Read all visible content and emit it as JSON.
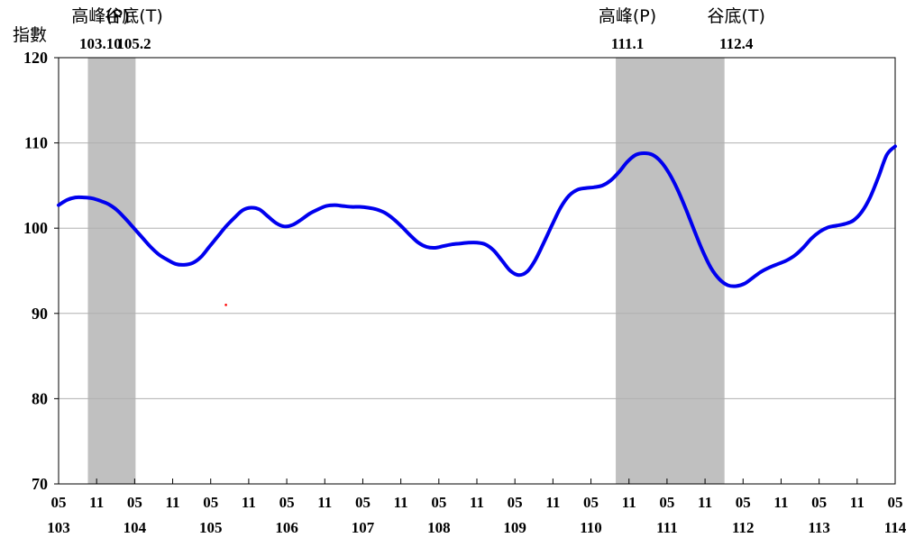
{
  "chart_data": {
    "type": "line",
    "ylabel": "指數",
    "ylim": [
      70,
      120
    ],
    "yticks": [
      70,
      80,
      90,
      100,
      110,
      120
    ],
    "grid": true,
    "series": [
      {
        "color": "#0000ee",
        "points": [
          [
            0,
            102.7
          ],
          [
            1,
            103.3
          ],
          [
            2,
            103.6
          ],
          [
            3,
            103.6
          ],
          [
            4,
            103.5
          ],
          [
            5,
            103.2
          ],
          [
            6,
            102.8
          ],
          [
            7,
            102.1
          ],
          [
            8,
            101.1
          ],
          [
            9,
            100.0
          ],
          [
            10,
            98.9
          ],
          [
            11,
            97.8
          ],
          [
            12,
            96.9
          ],
          [
            13,
            96.3
          ],
          [
            14,
            95.8
          ],
          [
            15,
            95.7
          ],
          [
            16,
            95.9
          ],
          [
            17,
            96.6
          ],
          [
            18,
            97.8
          ],
          [
            19,
            99.0
          ],
          [
            20,
            100.2
          ],
          [
            21,
            101.2
          ],
          [
            22,
            102.1
          ],
          [
            23,
            102.4
          ],
          [
            24,
            102.2
          ],
          [
            25,
            101.4
          ],
          [
            26,
            100.6
          ],
          [
            27,
            100.2
          ],
          [
            28,
            100.4
          ],
          [
            29,
            101.0
          ],
          [
            30,
            101.7
          ],
          [
            31,
            102.2
          ],
          [
            32,
            102.6
          ],
          [
            33,
            102.7
          ],
          [
            34,
            102.6
          ],
          [
            35,
            102.5
          ],
          [
            36,
            102.5
          ],
          [
            37,
            102.4
          ],
          [
            38,
            102.2
          ],
          [
            39,
            101.8
          ],
          [
            40,
            101.1
          ],
          [
            41,
            100.2
          ],
          [
            42,
            99.2
          ],
          [
            43,
            98.3
          ],
          [
            44,
            97.8
          ],
          [
            45,
            97.7
          ],
          [
            46,
            97.9
          ],
          [
            47,
            98.1
          ],
          [
            48,
            98.2
          ],
          [
            49,
            98.3
          ],
          [
            50,
            98.3
          ],
          [
            51,
            98.1
          ],
          [
            52,
            97.4
          ],
          [
            53,
            96.2
          ],
          [
            54,
            95.0
          ],
          [
            55,
            94.5
          ],
          [
            56,
            94.9
          ],
          [
            57,
            96.3
          ],
          [
            58,
            98.3
          ],
          [
            59,
            100.4
          ],
          [
            60,
            102.4
          ],
          [
            61,
            103.8
          ],
          [
            62,
            104.5
          ],
          [
            63,
            104.7
          ],
          [
            64,
            104.8
          ],
          [
            65,
            105.0
          ],
          [
            66,
            105.6
          ],
          [
            67,
            106.6
          ],
          [
            68,
            107.8
          ],
          [
            69,
            108.6
          ],
          [
            70,
            108.8
          ],
          [
            71,
            108.6
          ],
          [
            72,
            107.8
          ],
          [
            73,
            106.4
          ],
          [
            74,
            104.5
          ],
          [
            75,
            102.2
          ],
          [
            76,
            99.7
          ],
          [
            77,
            97.3
          ],
          [
            78,
            95.3
          ],
          [
            79,
            94.0
          ],
          [
            80,
            93.3
          ],
          [
            81,
            93.2
          ],
          [
            82,
            93.5
          ],
          [
            83,
            94.2
          ],
          [
            84,
            94.9
          ],
          [
            85,
            95.4
          ],
          [
            86,
            95.8
          ],
          [
            87,
            96.2
          ],
          [
            88,
            96.8
          ],
          [
            89,
            97.7
          ],
          [
            90,
            98.8
          ],
          [
            91,
            99.6
          ],
          [
            92,
            100.1
          ],
          [
            93,
            100.3
          ],
          [
            94,
            100.5
          ],
          [
            95,
            100.9
          ],
          [
            96,
            101.9
          ],
          [
            97,
            103.6
          ],
          [
            98,
            106.0
          ],
          [
            99,
            108.6
          ],
          [
            100,
            109.6
          ]
        ]
      }
    ],
    "x_months": [
      "05",
      "11",
      "05",
      "11",
      "05",
      "11",
      "05",
      "11",
      "05",
      "11",
      "05",
      "11",
      "05",
      "11",
      "05",
      "11",
      "05",
      "11",
      "05",
      "11",
      "05",
      "11",
      "05"
    ],
    "x_years": [
      {
        "label": "103",
        "at": 0
      },
      {
        "label": "104",
        "at": 2
      },
      {
        "label": "105",
        "at": 4
      },
      {
        "label": "106",
        "at": 6
      },
      {
        "label": "107",
        "at": 8
      },
      {
        "label": "108",
        "at": 10
      },
      {
        "label": "109",
        "at": 12
      },
      {
        "label": "110",
        "at": 14
      },
      {
        "label": "111",
        "at": 16
      },
      {
        "label": "112",
        "at": 18
      },
      {
        "label": "113",
        "at": 20
      },
      {
        "label": "114",
        "at": 22
      }
    ],
    "recession_bands": [
      {
        "start": 3.5,
        "end": 9.2,
        "color": "#c0c0c0"
      },
      {
        "start": 66.6,
        "end": 79.6,
        "color": "#c0c0c0"
      }
    ],
    "annotations": [
      {
        "label": "高峰(P)",
        "date": "103.10",
        "x": 5
      },
      {
        "label": "谷底(T)",
        "date": "105.2",
        "x": 9
      },
      {
        "label": "高峰(P)",
        "date": "111.1",
        "x": 68
      },
      {
        "label": "谷底(T)",
        "date": "112.4",
        "x": 81
      }
    ],
    "stray_point": {
      "x": 20,
      "y": 91,
      "color": "#ff0000"
    }
  }
}
